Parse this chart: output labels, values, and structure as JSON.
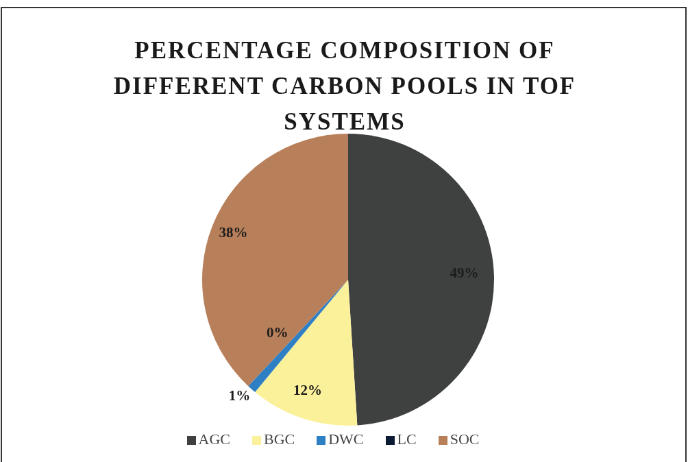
{
  "chart_data": {
    "type": "pie",
    "title": "PERCENTAGE COMPOSITION OF DIFFERENT CARBON POOLS IN TOF SYSTEMS",
    "categories": [
      "AGC",
      "BGC",
      "DWC",
      "LC",
      "SOC"
    ],
    "values": [
      49,
      12,
      1,
      0,
      38
    ],
    "colors": [
      "#3f4040",
      "#fbf19a",
      "#2f7fc4",
      "#0b1b33",
      "#b8805a"
    ],
    "value_labels": [
      "49%",
      "12%",
      "1%",
      "0%",
      "38%"
    ],
    "legend": "bottom"
  }
}
